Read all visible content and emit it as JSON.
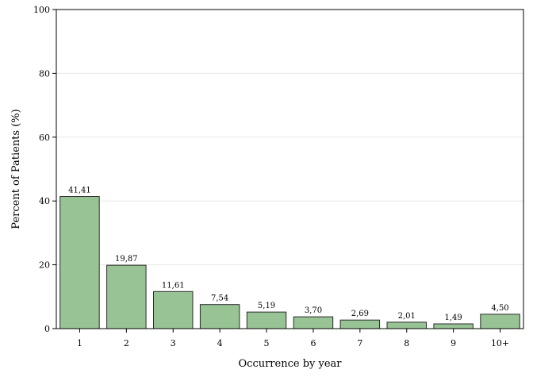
{
  "chart_data": {
    "type": "bar",
    "categories": [
      "1",
      "2",
      "3",
      "4",
      "5",
      "6",
      "7",
      "8",
      "9",
      "10+"
    ],
    "values": [
      41.41,
      19.87,
      11.61,
      7.54,
      5.19,
      3.7,
      2.69,
      2.01,
      1.49,
      4.5
    ],
    "data_labels": [
      "41,41",
      "19,87",
      "11,61",
      "7,54",
      "5,19",
      "3,70",
      "2,69",
      "2,01",
      "1,49",
      "4,50"
    ],
    "title": "",
    "xlabel": "Occurrence by year",
    "ylabel": "Percent of Patients (%)",
    "ylim": [
      0,
      100
    ],
    "yticks": [
      0,
      20,
      40,
      60,
      80,
      100
    ],
    "grid": true,
    "legend": "none",
    "colors": {
      "bar_fill": "#98c495",
      "bar_stroke": "#2a2a2a",
      "grid": "#e8e8e8",
      "frame": "#000000"
    }
  }
}
